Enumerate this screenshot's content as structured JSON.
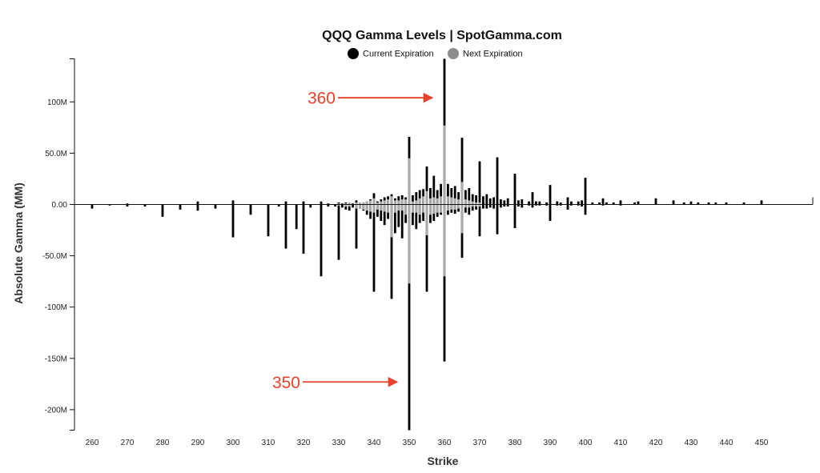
{
  "chart_data": {
    "type": "bar",
    "title": "QQQ Gamma Levels | SpotGamma.com",
    "xlabel": "Strike",
    "ylabel": "Absolute Gamma (MM)",
    "xlim": [
      256,
      455
    ],
    "ylim": [
      -220,
      142
    ],
    "x_ticks": [
      260,
      270,
      280,
      290,
      300,
      310,
      320,
      330,
      340,
      350,
      360,
      370,
      380,
      390,
      400,
      410,
      420,
      430,
      440,
      450
    ],
    "x_tick_labels": [
      "260",
      "270",
      "280",
      "290",
      "300",
      "310",
      "320",
      "330",
      "340",
      "350",
      "360",
      "370",
      "380",
      "390",
      "400",
      "410",
      "420",
      "430",
      "440",
      "450"
    ],
    "y_ticks": [
      100,
      50,
      0,
      -50,
      -100,
      -150,
      -200
    ],
    "y_tick_labels": [
      "100M",
      "50.0M",
      "0.00",
      "-50.0M",
      "-100M",
      "-150M",
      "-200M"
    ],
    "legend_position": "top-center",
    "grid": false,
    "colors": {
      "current": "#000000",
      "next": "#aaaaaa",
      "annotation": "#e8412c"
    },
    "series": [
      {
        "name": "Current Expiration",
        "points": [
          [
            260,
            0,
            -4
          ],
          [
            265,
            0,
            -1
          ],
          [
            270,
            1,
            -2
          ],
          [
            275,
            0,
            -2
          ],
          [
            280,
            0,
            -12
          ],
          [
            285,
            0,
            -5
          ],
          [
            290,
            3,
            -6
          ],
          [
            295,
            0,
            -4
          ],
          [
            300,
            4,
            -32
          ],
          [
            305,
            0,
            -10
          ],
          [
            310,
            0,
            -31
          ],
          [
            313,
            0,
            -2
          ],
          [
            315,
            3,
            -43
          ],
          [
            318,
            0,
            -24
          ],
          [
            320,
            3,
            -48
          ],
          [
            322,
            0,
            -3
          ],
          [
            325,
            3,
            -70
          ],
          [
            327,
            1,
            -2
          ],
          [
            329,
            0,
            -2
          ],
          [
            330,
            2,
            -54
          ],
          [
            331,
            1,
            -3
          ],
          [
            332,
            2,
            -5
          ],
          [
            333,
            0,
            -6
          ],
          [
            334,
            1,
            -3
          ],
          [
            335,
            4,
            -43
          ],
          [
            336,
            1,
            -4
          ],
          [
            337,
            2,
            -6
          ],
          [
            338,
            3,
            -10
          ],
          [
            339,
            5,
            -14
          ],
          [
            340,
            11,
            -85
          ],
          [
            341,
            3,
            -12
          ],
          [
            342,
            5,
            -16
          ],
          [
            343,
            7,
            -20
          ],
          [
            344,
            8,
            -14
          ],
          [
            345,
            10,
            -92
          ],
          [
            346,
            6,
            -28
          ],
          [
            347,
            8,
            -22
          ],
          [
            348,
            9,
            -33
          ],
          [
            349,
            7,
            -18
          ],
          [
            350,
            66,
            -220
          ],
          [
            351,
            9,
            -20
          ],
          [
            352,
            12,
            -24
          ],
          [
            353,
            14,
            -18
          ],
          [
            354,
            15,
            -16
          ],
          [
            355,
            37,
            -85
          ],
          [
            356,
            16,
            -18
          ],
          [
            357,
            28,
            -16
          ],
          [
            358,
            14,
            -12
          ],
          [
            359,
            20,
            -10
          ],
          [
            360,
            142,
            -153
          ],
          [
            361,
            20,
            -10
          ],
          [
            362,
            16,
            -8
          ],
          [
            363,
            18,
            -9
          ],
          [
            364,
            12,
            -7
          ],
          [
            365,
            65,
            -52
          ],
          [
            366,
            14,
            -8
          ],
          [
            367,
            16,
            -10
          ],
          [
            368,
            10,
            -6
          ],
          [
            369,
            9,
            -5
          ],
          [
            370,
            42,
            -31
          ],
          [
            371,
            8,
            -4
          ],
          [
            372,
            10,
            -4
          ],
          [
            373,
            6,
            -3
          ],
          [
            374,
            7,
            -4
          ],
          [
            375,
            46,
            -29
          ],
          [
            376,
            5,
            -3
          ],
          [
            377,
            4,
            -2
          ],
          [
            378,
            6,
            -2
          ],
          [
            380,
            30,
            -23
          ],
          [
            381,
            4,
            -2
          ],
          [
            382,
            5,
            -3
          ],
          [
            384,
            3,
            -1
          ],
          [
            385,
            12,
            -3
          ],
          [
            386,
            3,
            -1
          ],
          [
            387,
            3,
            -1
          ],
          [
            389,
            2,
            -1
          ],
          [
            390,
            19,
            -16
          ],
          [
            392,
            3,
            -1
          ],
          [
            393,
            2,
            -1
          ],
          [
            395,
            7,
            -5
          ],
          [
            396,
            3,
            -1
          ],
          [
            398,
            3,
            -1
          ],
          [
            399,
            4,
            -2
          ],
          [
            400,
            26,
            -10
          ],
          [
            402,
            2,
            0
          ],
          [
            404,
            2,
            0
          ],
          [
            405,
            6,
            -1
          ],
          [
            406,
            2,
            0
          ],
          [
            408,
            2,
            0
          ],
          [
            410,
            4,
            -1
          ],
          [
            414,
            2,
            0
          ],
          [
            415,
            3,
            0
          ],
          [
            420,
            6,
            0
          ],
          [
            425,
            4,
            0
          ],
          [
            428,
            2,
            0
          ],
          [
            430,
            3,
            0
          ],
          [
            432,
            2,
            0
          ],
          [
            435,
            2,
            0
          ],
          [
            437,
            2,
            0
          ],
          [
            440,
            2,
            0
          ],
          [
            445,
            2,
            0
          ],
          [
            450,
            4,
            0
          ]
        ]
      },
      {
        "name": "Next Expiration",
        "points": [
          [
            330,
            1,
            -1
          ],
          [
            332,
            1,
            -2
          ],
          [
            333,
            2,
            -2
          ],
          [
            335,
            2,
            -4
          ],
          [
            336,
            2,
            -4
          ],
          [
            337,
            2,
            -5
          ],
          [
            338,
            3,
            -6
          ],
          [
            339,
            4,
            -7
          ],
          [
            340,
            6,
            -8
          ],
          [
            341,
            2,
            -5
          ],
          [
            342,
            3,
            -6
          ],
          [
            343,
            4,
            -7
          ],
          [
            344,
            5,
            -8
          ],
          [
            345,
            8,
            -32
          ],
          [
            346,
            4,
            -8
          ],
          [
            347,
            4,
            -6
          ],
          [
            348,
            5,
            -6
          ],
          [
            349,
            5,
            -10
          ],
          [
            350,
            45,
            -77
          ],
          [
            351,
            3,
            -8
          ],
          [
            352,
            4,
            -8
          ],
          [
            353,
            6,
            -10
          ],
          [
            354,
            8,
            -8
          ],
          [
            355,
            13,
            -30
          ],
          [
            356,
            6,
            -10
          ],
          [
            357,
            7,
            -9
          ],
          [
            358,
            6,
            -8
          ],
          [
            359,
            8,
            -8
          ],
          [
            360,
            77,
            -70
          ],
          [
            361,
            8,
            -6
          ],
          [
            362,
            7,
            -5
          ],
          [
            363,
            6,
            -5
          ],
          [
            364,
            5,
            -4
          ],
          [
            365,
            22,
            -28
          ],
          [
            366,
            5,
            -3
          ],
          [
            367,
            4,
            -3
          ],
          [
            368,
            3,
            -2
          ],
          [
            369,
            2,
            -2
          ],
          [
            370,
            2,
            -2
          ]
        ]
      }
    ],
    "annotations": [
      {
        "label": "360",
        "x": 360,
        "y": 104
      },
      {
        "label": "350",
        "x": 350,
        "y": -173
      }
    ]
  }
}
